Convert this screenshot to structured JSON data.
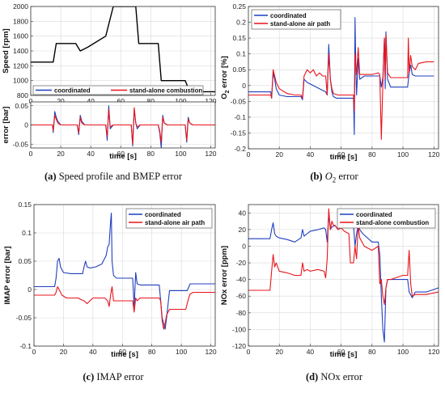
{
  "colors": {
    "coordinated": "#1f3fbf",
    "standalone": "#e8141b",
    "speed": "#000000",
    "grid": "#d9d9d9",
    "axis": "#333333"
  },
  "captions": {
    "a": {
      "tag": "(a)",
      "text": "Speed profile and BMEP error"
    },
    "b": {
      "tag": "(b)",
      "text": "O",
      "sub": "2",
      "text2": " error"
    },
    "c": {
      "tag": "(c)",
      "text": "IMAP error"
    },
    "d": {
      "tag": "(d)",
      "text": "NOx error"
    }
  },
  "chart_data": [
    {
      "id": "speed",
      "type": "line",
      "xlabel": "",
      "ylabel": "Speed [rpm]",
      "xlim": [
        0,
        123
      ],
      "ylim": [
        800,
        2000
      ],
      "xticks": [
        0,
        20,
        40,
        60,
        80,
        100,
        120
      ],
      "yticks": [
        800,
        1000,
        1200,
        1400,
        1600,
        1800,
        2000
      ],
      "grid": true,
      "legend": "bottom",
      "legend_entries": [
        "coordinated",
        "stand-alone combustion"
      ],
      "series": [
        {
          "color": "speed",
          "x": [
            0,
            15,
            17,
            30,
            33,
            38,
            50,
            55,
            70,
            72,
            85,
            87,
            103,
            106,
            123
          ],
          "y": [
            1250,
            1250,
            1500,
            1500,
            1400,
            1450,
            1600,
            2000,
            2000,
            1500,
            1500,
            1000,
            1000,
            850,
            850
          ]
        }
      ]
    },
    {
      "id": "bmep",
      "type": "line",
      "xlabel": "time [s]",
      "ylabel": "error [bar]",
      "xlim": [
        0,
        123
      ],
      "ylim": [
        -0.06,
        0.06
      ],
      "xticks": [
        0,
        20,
        40,
        60,
        80,
        100,
        120
      ],
      "yticks": [
        -0.05,
        0,
        0.05
      ],
      "ytick_labels": [
        "-0.05",
        "0",
        "0.05"
      ],
      "grid": true,
      "series": [
        {
          "name": "coordinated",
          "color": "coordinated",
          "x": [
            0,
            14.5,
            15,
            16,
            17,
            18,
            20,
            31,
            32,
            33,
            34,
            36,
            50,
            51,
            52,
            53,
            55,
            67,
            68,
            69,
            70,
            71,
            73,
            85,
            86,
            87,
            88,
            89,
            91,
            103,
            104,
            105,
            106,
            108,
            123
          ],
          "y": [
            0,
            0,
            -0.02,
            0.035,
            0.02,
            0.01,
            0,
            0,
            -0.025,
            0.025,
            0.01,
            0,
            0,
            -0.04,
            0.05,
            -0.01,
            0,
            0,
            -0.055,
            0.04,
            0.005,
            -0.01,
            0,
            0,
            -0.02,
            -0.06,
            0.025,
            0.005,
            0,
            0,
            -0.045,
            0.02,
            0.005,
            0,
            0
          ]
        },
        {
          "name": "stand-alone combustion",
          "color": "standalone",
          "x": [
            0,
            14.5,
            15,
            16,
            17,
            18,
            20,
            31,
            32,
            33,
            34,
            36,
            50,
            51,
            52,
            53,
            55,
            67,
            68,
            69,
            70,
            71,
            73,
            85,
            86,
            87,
            88,
            89,
            91,
            103,
            104,
            105,
            106,
            108,
            123
          ],
          "y": [
            0,
            0,
            -0.015,
            0.025,
            0.015,
            0.005,
            0,
            0,
            -0.02,
            0.02,
            0.005,
            0,
            0,
            -0.03,
            0.04,
            -0.005,
            0,
            0,
            -0.05,
            0.045,
            0.005,
            -0.005,
            0,
            0,
            -0.015,
            -0.045,
            0.02,
            0.005,
            0,
            0,
            -0.04,
            0.015,
            0.005,
            0,
            0
          ]
        }
      ]
    },
    {
      "id": "o2",
      "type": "line",
      "xlabel": "time [s]",
      "ylabel": "O2 error [%]",
      "xlim": [
        0,
        123
      ],
      "ylim": [
        -0.2,
        0.25
      ],
      "xticks": [
        0,
        20,
        40,
        60,
        80,
        100,
        120
      ],
      "yticks": [
        -0.2,
        -0.15,
        -0.1,
        -0.05,
        0,
        0.05,
        0.1,
        0.15,
        0.2,
        0.25
      ],
      "ytick_labels": [
        "-0.2",
        "-0.15",
        "-0.1",
        "-0.05",
        "0",
        "0.05",
        "0.1",
        "0.15",
        "0.2",
        "0.25"
      ],
      "grid": true,
      "legend": "top-left",
      "series": [
        {
          "name": "coordinated",
          "color": "coordinated",
          "x": [
            0,
            14.5,
            15,
            16,
            17,
            18,
            20,
            25,
            30,
            34,
            35,
            36,
            38,
            42,
            46,
            50,
            51,
            52,
            53,
            54,
            55,
            57,
            60,
            65,
            68,
            68.5,
            69,
            69.5,
            70,
            71,
            72,
            75,
            80,
            85,
            86,
            87,
            88,
            88.5,
            89,
            90,
            92,
            100,
            103,
            104,
            105,
            106,
            108,
            112,
            120
          ],
          "y": [
            -0.02,
            -0.02,
            -0.04,
            0.04,
            0.02,
            -0.01,
            -0.03,
            -0.035,
            -0.035,
            -0.035,
            -0.045,
            0.02,
            0.01,
            0.0,
            -0.01,
            -0.02,
            -0.03,
            0.13,
            0.02,
            -0.02,
            -0.035,
            -0.04,
            -0.04,
            -0.04,
            -0.04,
            -0.155,
            0.215,
            0.05,
            -0.03,
            0.085,
            0.02,
            0.03,
            0.03,
            0.03,
            -0.005,
            0.025,
            0.15,
            -0.01,
            0.17,
            0.02,
            -0.005,
            -0.005,
            -0.005,
            0.04,
            0.065,
            0.035,
            0.03,
            0.03,
            0.03
          ]
        },
        {
          "name": "stand-alone air path",
          "color": "standalone",
          "x": [
            0,
            14.5,
            15,
            16,
            17,
            18,
            19,
            20,
            25,
            30,
            34,
            35,
            36,
            37,
            38,
            40,
            42,
            44,
            46,
            48,
            50,
            51,
            52,
            53,
            54,
            55,
            58,
            65,
            68,
            68.5,
            69,
            70,
            71,
            72,
            74,
            80,
            84,
            85,
            86,
            87,
            88,
            88.5,
            89,
            89.5,
            90,
            92,
            95,
            100,
            103,
            103.5,
            104,
            105,
            106,
            108,
            110,
            115,
            120
          ],
          "y": [
            -0.03,
            -0.03,
            -0.04,
            0.05,
            0.03,
            0.01,
            0.0,
            -0.01,
            -0.025,
            -0.03,
            -0.03,
            -0.04,
            0.03,
            0.04,
            0.05,
            0.04,
            0.05,
            0.03,
            0.04,
            0.03,
            0.03,
            -0.03,
            0.1,
            0.02,
            -0.01,
            -0.025,
            -0.03,
            -0.03,
            -0.03,
            -0.08,
            0.1,
            0.035,
            0.12,
            0.035,
            0.035,
            0.035,
            0.04,
            0.035,
            -0.17,
            0.005,
            0.15,
            0.02,
            0.16,
            0.1,
            0.04,
            0.025,
            0.025,
            0.025,
            0.025,
            0.15,
            0.04,
            0.095,
            0.06,
            0.05,
            0.07,
            0.075,
            0.075
          ]
        }
      ]
    },
    {
      "id": "imap",
      "type": "line",
      "xlabel": "time [s]",
      "ylabel": "IMAP error [bar]",
      "xlim": [
        0,
        123
      ],
      "ylim": [
        -0.1,
        0.15
      ],
      "xticks": [
        0,
        20,
        40,
        60,
        80,
        100,
        120
      ],
      "yticks": [
        -0.1,
        -0.05,
        0,
        0.05,
        0.1,
        0.15
      ],
      "ytick_labels": [
        "-0.1",
        "-0.05",
        "0",
        "0.05",
        "0.1",
        "0.15"
      ],
      "grid": true,
      "legend": "top-right",
      "series": [
        {
          "name": "coordinated",
          "color": "coordinated",
          "x": [
            0,
            14,
            15,
            16,
            17,
            18,
            20,
            25,
            30,
            33,
            34,
            35,
            36,
            38,
            42,
            46,
            49,
            50,
            51,
            52,
            52.5,
            53,
            54,
            56,
            60,
            66,
            67,
            68,
            69,
            70,
            72,
            80,
            85,
            86,
            87,
            88,
            89,
            90,
            92,
            100,
            104,
            106,
            110,
            120,
            123
          ],
          "y": [
            0.005,
            0.005,
            0.02,
            0.05,
            0.055,
            0.04,
            0.03,
            0.028,
            0.028,
            0.028,
            0.04,
            0.05,
            0.04,
            0.038,
            0.04,
            0.045,
            0.06,
            0.075,
            0.08,
            0.12,
            0.135,
            0.05,
            0.025,
            0.02,
            0.02,
            0.02,
            0.02,
            -0.03,
            0.03,
            0.01,
            0.008,
            0.008,
            0.008,
            -0.02,
            -0.05,
            -0.06,
            -0.07,
            -0.05,
            -0.002,
            -0.002,
            -0.002,
            0.01,
            0.01,
            0.01,
            0.01
          ]
        },
        {
          "name": "stand-alone air path",
          "color": "standalone",
          "x": [
            0,
            14,
            15,
            16,
            17,
            19,
            22,
            30,
            32,
            34,
            36,
            38,
            40,
            48,
            50,
            51,
            52,
            53,
            54,
            56,
            60,
            66,
            67,
            68,
            69,
            70,
            72,
            80,
            85,
            86,
            87,
            88,
            89,
            90,
            92,
            100,
            103,
            104,
            105,
            106,
            108,
            115,
            123
          ],
          "y": [
            -0.01,
            -0.01,
            -0.005,
            0.005,
            0.0,
            -0.01,
            -0.015,
            -0.015,
            -0.018,
            -0.02,
            -0.025,
            -0.02,
            -0.015,
            -0.015,
            -0.02,
            -0.03,
            -0.01,
            0.005,
            -0.02,
            -0.02,
            -0.02,
            -0.02,
            -0.02,
            -0.04,
            -0.015,
            -0.02,
            -0.015,
            -0.015,
            -0.015,
            -0.02,
            -0.055,
            -0.07,
            -0.06,
            -0.045,
            -0.035,
            -0.035,
            -0.035,
            -0.025,
            -0.015,
            -0.008,
            -0.005,
            -0.005,
            -0.005
          ]
        }
      ]
    },
    {
      "id": "nox",
      "type": "line",
      "xlabel": "time [s]",
      "ylabel": "NOx error [ppm]",
      "xlim": [
        0,
        123
      ],
      "ylim": [
        -120,
        50
      ],
      "xticks": [
        0,
        20,
        40,
        60,
        80,
        100,
        120
      ],
      "yticks": [
        -120,
        -100,
        -80,
        -60,
        -40,
        -20,
        0,
        20,
        40
      ],
      "grid": true,
      "legend": "top-right",
      "series": [
        {
          "name": "coordinated",
          "color": "coordinated",
          "x": [
            0,
            14,
            15,
            16,
            17,
            18,
            20,
            25,
            30,
            34,
            35,
            36,
            38,
            40,
            45,
            49,
            50,
            51,
            52,
            53,
            54,
            56,
            58,
            60,
            62,
            65,
            68,
            69,
            70,
            71,
            72,
            74,
            80,
            84,
            85,
            86,
            87,
            88,
            89,
            90,
            92,
            100,
            103,
            104,
            106,
            108,
            115,
            120,
            123
          ],
          "y": [
            9,
            9,
            20,
            28,
            15,
            12,
            10,
            8,
            5,
            10,
            20,
            12,
            15,
            18,
            20,
            22,
            20,
            5,
            40,
            20,
            23,
            25,
            20,
            22,
            25,
            30,
            25,
            0,
            15,
            25,
            20,
            15,
            5,
            5,
            -10,
            -60,
            -100,
            -115,
            -50,
            -40,
            -40,
            -40,
            -40,
            -55,
            -62,
            -55,
            -55,
            -52,
            -50
          ]
        },
        {
          "name": "stand-alone combustion",
          "color": "standalone",
          "x": [
            0,
            14,
            15,
            16,
            17,
            18,
            20,
            25,
            30,
            34,
            35,
            36,
            38,
            40,
            45,
            49,
            50,
            51,
            52,
            53,
            54,
            55,
            56,
            58,
            60,
            62,
            65,
            66,
            68,
            69,
            70,
            71,
            72,
            75,
            80,
            84,
            85,
            86,
            87,
            88,
            89,
            90,
            92,
            100,
            103,
            104,
            105,
            106,
            108,
            115,
            123
          ],
          "y": [
            -53,
            -53,
            -30,
            -10,
            -25,
            -20,
            -30,
            -32,
            -35,
            -35,
            -20,
            -30,
            -28,
            -30,
            -28,
            -30,
            -38,
            -15,
            45,
            20,
            30,
            25,
            25,
            20,
            22,
            18,
            15,
            -20,
            -20,
            0,
            -15,
            25,
            10,
            0,
            -5,
            0,
            -45,
            -40,
            -60,
            -70,
            -50,
            -40,
            -40,
            -35,
            -35,
            -5,
            -45,
            -60,
            -58,
            -58,
            -55
          ]
        }
      ]
    }
  ]
}
